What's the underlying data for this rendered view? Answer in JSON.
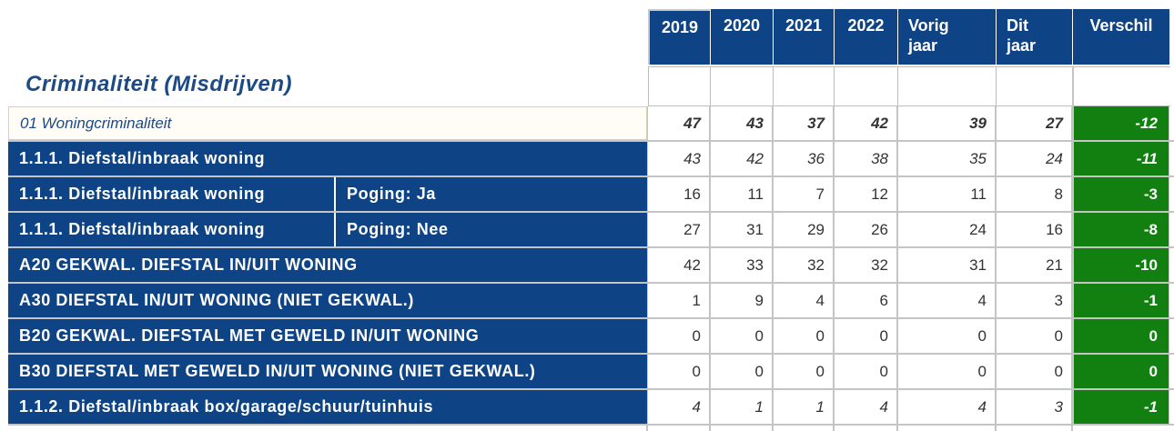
{
  "title": "Criminaliteit (Misdrijven)",
  "headers": [
    "2019",
    "2020",
    "2021",
    "2022",
    "Vorig\njaar",
    "Dit\njaar",
    "Verschil"
  ],
  "header_lines": [
    [
      "2019"
    ],
    [
      "2020"
    ],
    [
      "2021"
    ],
    [
      "2022"
    ],
    [
      "Vorig",
      "jaar"
    ],
    [
      "Dit",
      "jaar"
    ],
    [
      "Verschil"
    ]
  ],
  "rows": [
    {
      "label": "01 Woningcriminaliteit",
      "sublabel": "",
      "style": "category",
      "values": [
        "47",
        "43",
        "37",
        "42",
        "39",
        "27"
      ],
      "diff": "-12"
    },
    {
      "label": "1.1.1. Diefstal/inbraak woning",
      "sublabel": "",
      "style": "subtotal",
      "values": [
        "43",
        "42",
        "36",
        "38",
        "35",
        "24"
      ],
      "diff": "-11"
    },
    {
      "label": "1.1.1. Diefstal/inbraak woning",
      "sublabel": "Poging: Ja",
      "style": "detail",
      "values": [
        "16",
        "11",
        "7",
        "12",
        "11",
        "8"
      ],
      "diff": "-3"
    },
    {
      "label": "1.1.1. Diefstal/inbraak woning",
      "sublabel": "Poging: Nee",
      "style": "detail",
      "values": [
        "27",
        "31",
        "29",
        "26",
        "24",
        "16"
      ],
      "diff": "-8"
    },
    {
      "label": "A20 GEKWAL. DIEFSTAL IN/UIT WONING",
      "sublabel": "",
      "style": "detail",
      "values": [
        "42",
        "33",
        "32",
        "32",
        "31",
        "21"
      ],
      "diff": "-10"
    },
    {
      "label": "A30 DIEFSTAL IN/UIT WONING (NIET GEKWAL.)",
      "sublabel": "",
      "style": "detail",
      "values": [
        "1",
        "9",
        "4",
        "6",
        "4",
        "3"
      ],
      "diff": "-1"
    },
    {
      "label": "B20 GEKWAL. DIEFSTAL MET GEWELD IN/UIT WONING",
      "sublabel": "",
      "style": "detail",
      "values": [
        "0",
        "0",
        "0",
        "0",
        "0",
        "0"
      ],
      "diff": "0"
    },
    {
      "label": "B30 DIEFSTAL MET GEWELD IN/UIT WONING (NIET GEKWAL.)",
      "sublabel": "",
      "style": "detail",
      "values": [
        "0",
        "0",
        "0",
        "0",
        "0",
        "0"
      ],
      "diff": "0"
    },
    {
      "label": "1.1.2. Diefstal/inbraak box/garage/schuur/tuinhuis",
      "sublabel": "",
      "style": "subtotal",
      "values": [
        "4",
        "1",
        "1",
        "4",
        "4",
        "3"
      ],
      "diff": "-1"
    }
  ],
  "colors": {
    "header_bg": "#0e4485",
    "label_bg": "#0e4485",
    "diff_bg": "#118011",
    "title": "#1b4a85"
  }
}
